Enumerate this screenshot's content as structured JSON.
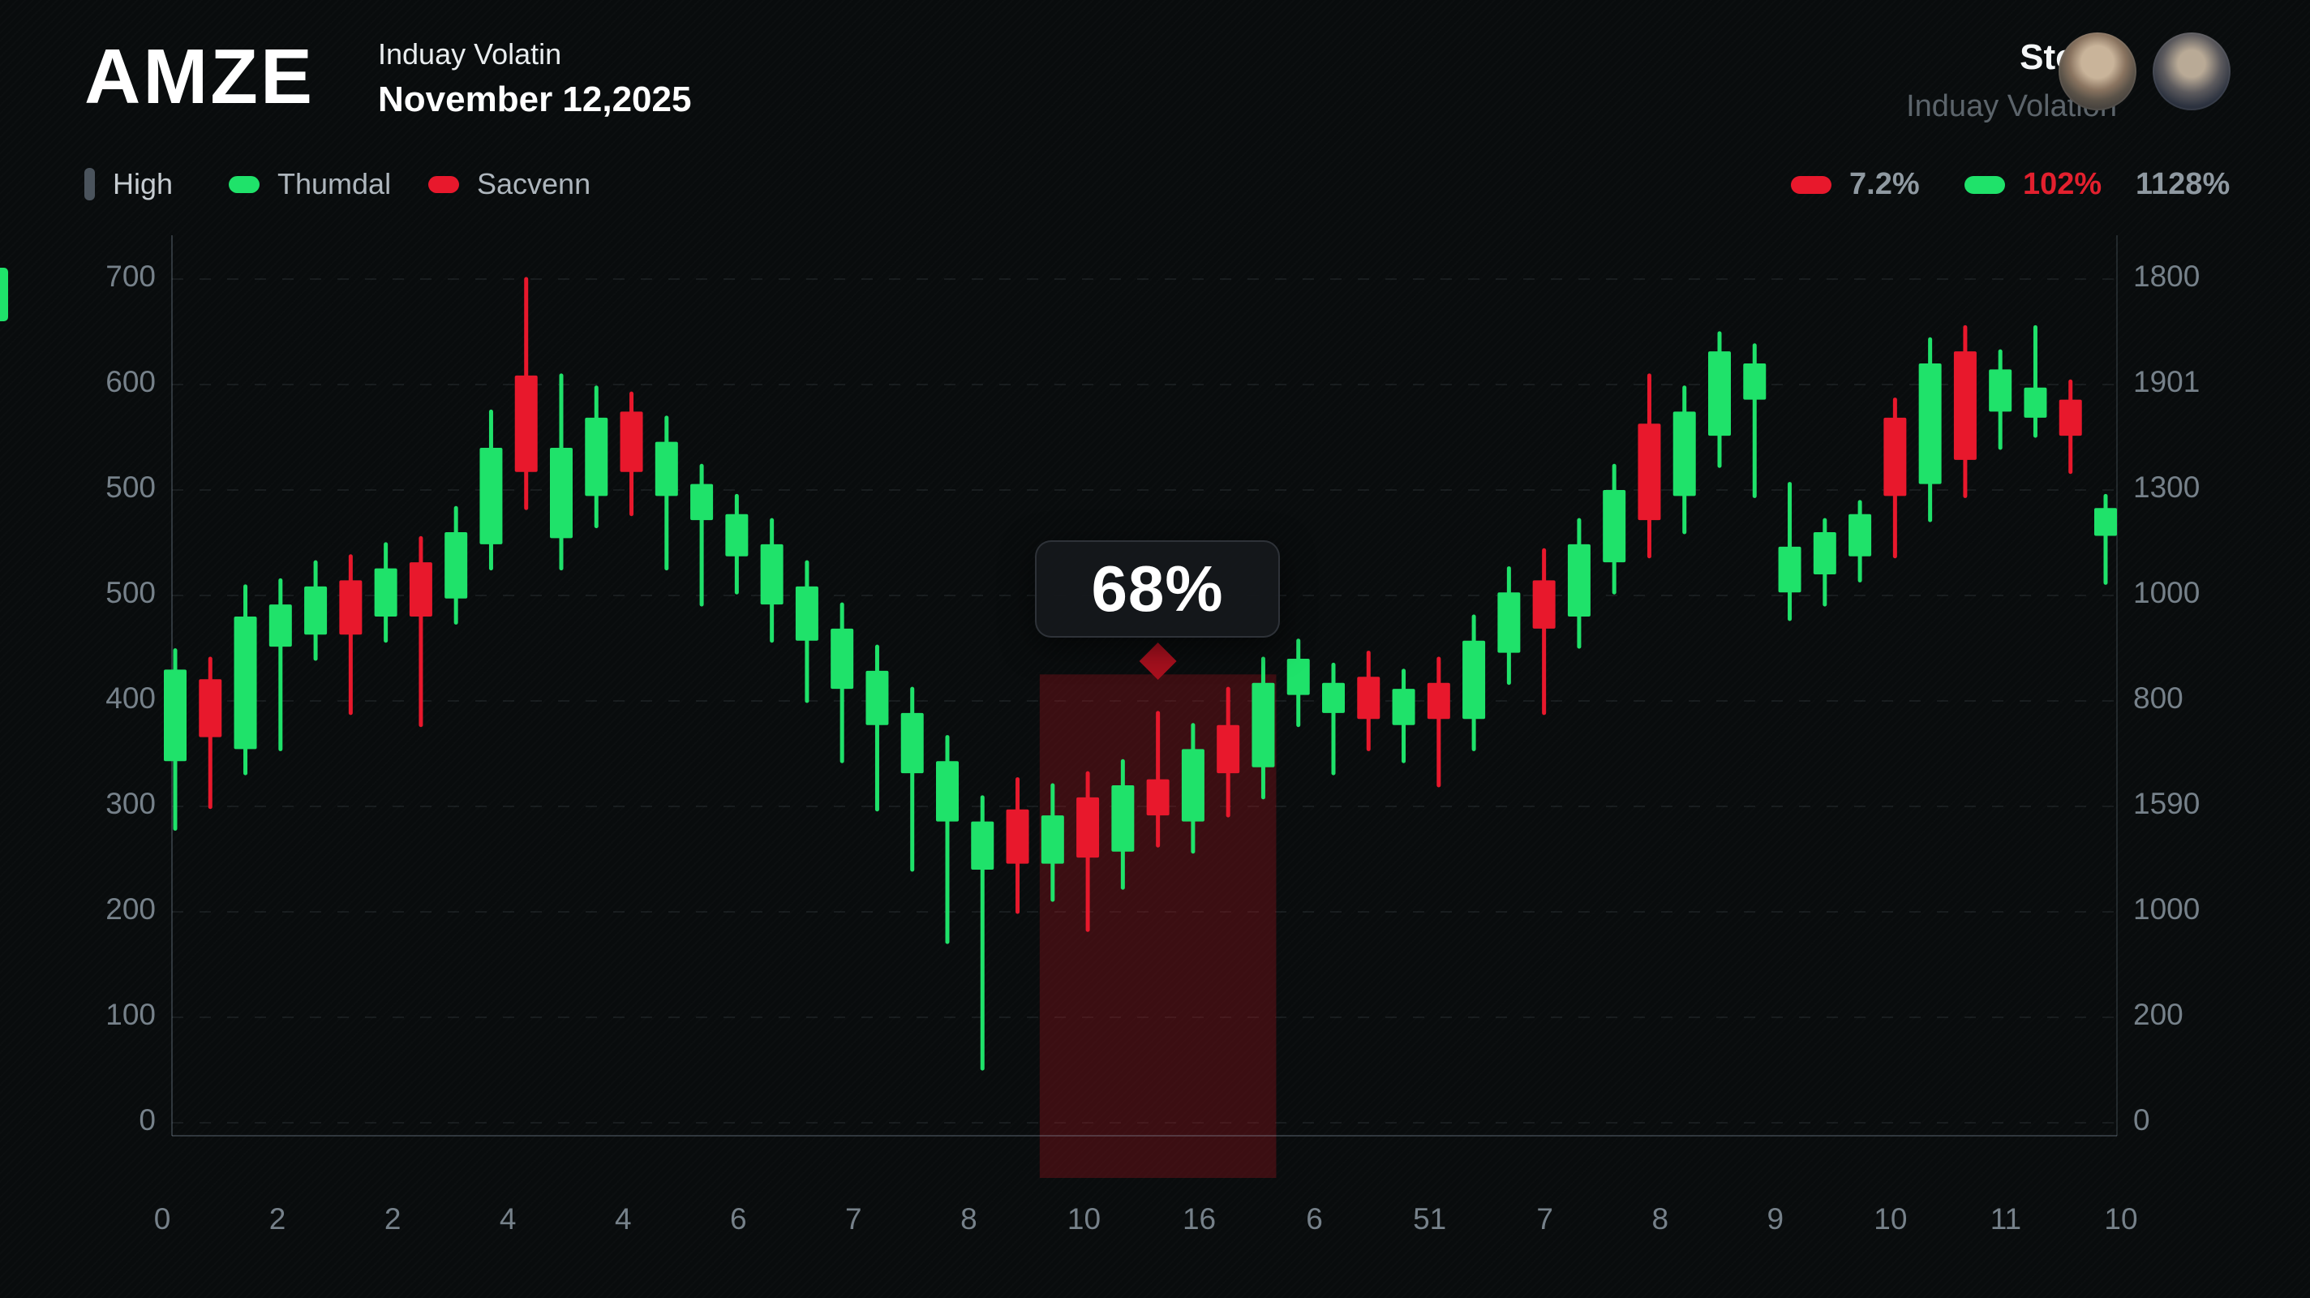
{
  "header": {
    "ticker": "AMZE",
    "subtitle_line1": "Induay Volatin",
    "subtitle_line2": "November 12,2025",
    "right_title": "Stock",
    "right_subtitle": "Induay Volation"
  },
  "legend": {
    "items": [
      {
        "label": "High",
        "marker": "bar",
        "color": "#4a535c"
      },
      {
        "label": "Thumdal",
        "marker": "pill",
        "color": "#1fe26a"
      },
      {
        "label": "Sacvenn",
        "marker": "pill",
        "color": "#e8182c"
      }
    ]
  },
  "stats_legend": {
    "items": [
      {
        "label": "7.2%",
        "marker_color": "#e8182c",
        "label_color": "#8f99a1"
      },
      {
        "label": "102%",
        "marker_color": "#1fe26a",
        "label_color": "#e3202e"
      },
      {
        "label": "1128%",
        "marker_color": "",
        "label_color": "#8f99a1"
      }
    ]
  },
  "tooltip": {
    "value": "68%"
  },
  "avatars": {
    "left": "avatar-1",
    "right": "avatar-2"
  },
  "colors": {
    "background": "#090c0d",
    "bullish": "#1fe26a",
    "bearish": "#e8182c",
    "grid": "rgba(158,178,190,0.10)",
    "axis": "rgba(150,170,185,0.28)",
    "highlight_region": "rgba(158,20,28,0.34)",
    "diamond": "#a8101e",
    "tick_text": "#76818a"
  },
  "chart_data": {
    "type": "candlestick",
    "title": "AMZE Induay Volatin",
    "ylim": [
      0,
      700
    ],
    "y_left_labels": [
      "700",
      "600",
      "500",
      "500",
      "400",
      "300",
      "200",
      "100",
      "0"
    ],
    "y_right_labels": [
      "1800",
      "1901",
      "1300",
      "1000",
      "800",
      "1590",
      "1000",
      "200",
      "0"
    ],
    "x_labels": [
      "0",
      "2",
      "2",
      "4",
      "4",
      "6",
      "7",
      "8",
      "10",
      "16",
      "6",
      "51",
      "7",
      "8",
      "9",
      "10",
      "11",
      "10"
    ],
    "grid": true,
    "candles": [
      [
        300,
        392,
        244,
        376
      ],
      [
        368,
        385,
        262,
        320
      ],
      [
        310,
        445,
        290,
        420
      ],
      [
        395,
        450,
        310,
        430
      ],
      [
        405,
        465,
        385,
        445
      ],
      [
        450,
        470,
        340,
        405
      ],
      [
        420,
        480,
        400,
        460
      ],
      [
        465,
        485,
        330,
        420
      ],
      [
        435,
        510,
        415,
        490
      ],
      [
        480,
        590,
        460,
        560
      ],
      [
        620,
        700,
        510,
        540
      ],
      [
        485,
        620,
        460,
        560
      ],
      [
        520,
        610,
        495,
        585
      ],
      [
        590,
        605,
        505,
        540
      ],
      [
        520,
        585,
        460,
        565
      ],
      [
        500,
        545,
        430,
        530
      ],
      [
        470,
        520,
        440,
        505
      ],
      [
        430,
        500,
        400,
        480
      ],
      [
        400,
        465,
        350,
        445
      ],
      [
        360,
        430,
        300,
        410
      ],
      [
        330,
        395,
        260,
        375
      ],
      [
        290,
        360,
        210,
        340
      ],
      [
        250,
        320,
        150,
        300
      ],
      [
        210,
        270,
        45,
        250
      ],
      [
        260,
        285,
        175,
        215
      ],
      [
        215,
        280,
        185,
        255
      ],
      [
        270,
        290,
        160,
        220
      ],
      [
        225,
        300,
        195,
        280
      ],
      [
        285,
        340,
        230,
        255
      ],
      [
        250,
        330,
        225,
        310
      ],
      [
        330,
        360,
        255,
        290
      ],
      [
        295,
        385,
        270,
        365
      ],
      [
        355,
        400,
        330,
        385
      ],
      [
        340,
        380,
        290,
        365
      ],
      [
        370,
        390,
        310,
        335
      ],
      [
        330,
        375,
        300,
        360
      ],
      [
        365,
        385,
        280,
        335
      ],
      [
        335,
        420,
        310,
        400
      ],
      [
        390,
        460,
        365,
        440
      ],
      [
        450,
        475,
        340,
        410
      ],
      [
        420,
        500,
        395,
        480
      ],
      [
        465,
        545,
        440,
        525
      ],
      [
        580,
        620,
        470,
        500
      ],
      [
        520,
        610,
        490,
        590
      ],
      [
        570,
        655,
        545,
        640
      ],
      [
        600,
        645,
        520,
        630
      ],
      [
        440,
        530,
        418,
        478
      ],
      [
        455,
        500,
        430,
        490
      ],
      [
        470,
        515,
        450,
        505
      ],
      [
        585,
        600,
        470,
        520
      ],
      [
        530,
        650,
        500,
        630
      ],
      [
        640,
        660,
        520,
        550
      ],
      [
        590,
        640,
        560,
        625
      ],
      [
        585,
        660,
        570,
        610
      ],
      [
        600,
        615,
        540,
        570
      ],
      [
        487,
        520,
        448,
        510
      ]
    ],
    "highlight_region": {
      "from_candle": 26,
      "to_candle": 32,
      "top_value": 372
    },
    "tooltip_candle": 29,
    "legend_position": "top"
  }
}
